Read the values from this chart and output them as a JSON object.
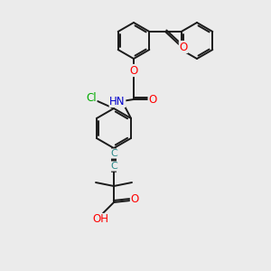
{
  "background_color": "#ebebeb",
  "atom_colors": {
    "O": "#ff0000",
    "N": "#0000cd",
    "Cl": "#00aa00",
    "C": "#2e8b8b",
    "H": "#888888"
  },
  "bond_color": "#1a1a1a",
  "bond_width": 1.4
}
